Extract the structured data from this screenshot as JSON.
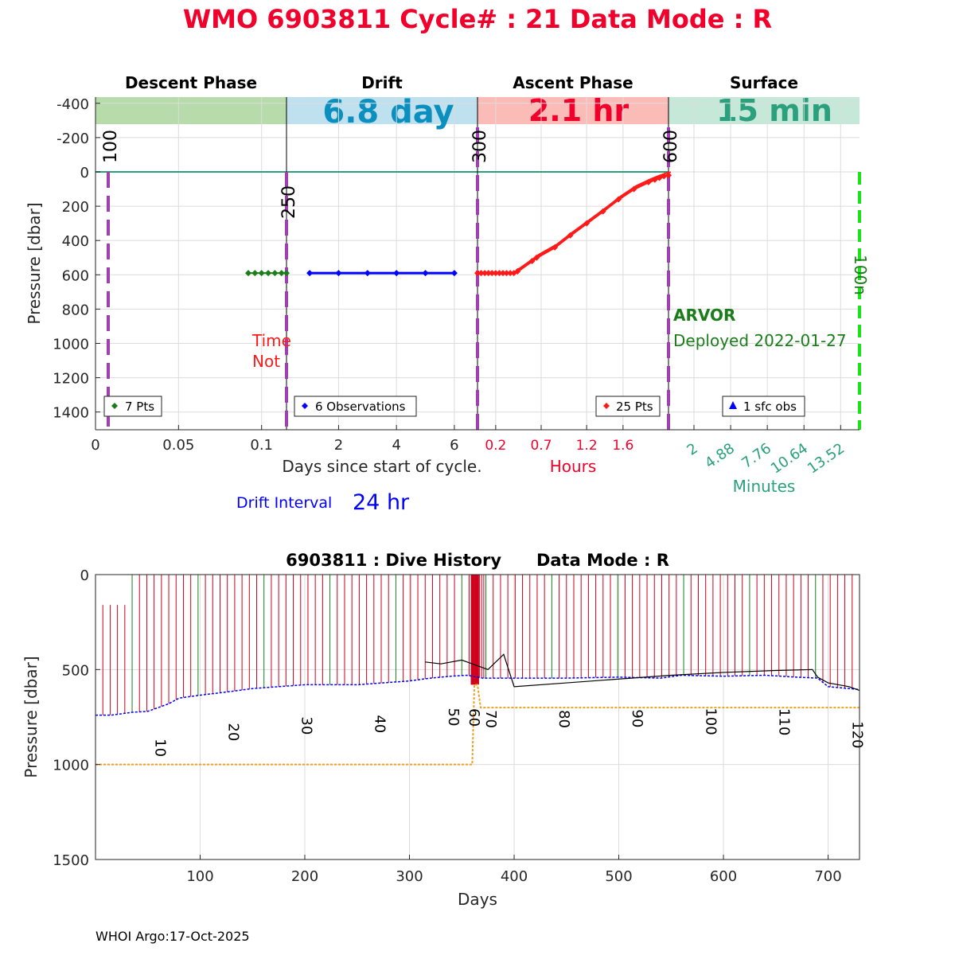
{
  "title": "WMO 6903811   Cycle# : 21   Data Mode : R",
  "colors": {
    "title": "#f0002a",
    "descent_band": "#b8dbab",
    "drift_band": "#bfe0ee",
    "ascent_band": "#fbbcb8",
    "surface_band": "#c6e8d8",
    "drift_text": "#0b8fbf",
    "ascent_text": "#f0002a",
    "surface_text": "#2aa07c",
    "purple": "#a040b0",
    "green_marker": "#1a7d1a",
    "blue_marker": "#0000ff",
    "red_marker": "#ff1a1a",
    "teal": "#2aa07c",
    "orange": "#f0a020",
    "lime": "#19e619"
  },
  "top_panel": {
    "phases": [
      "Descent Phase",
      "Drift",
      "Ascent Phase",
      "Surface"
    ],
    "band_values": [
      "",
      "6.8 day",
      "2.1 hr",
      "15 min"
    ],
    "ylabel": "Pressure [dbar]",
    "y_ticks": [
      "-400",
      "-200",
      "0",
      "200",
      "400",
      "600",
      "800",
      "1000",
      "1200",
      "1400"
    ],
    "descent_x_ticks": [
      "0",
      "0.05",
      "0.1"
    ],
    "drift_x_ticks": [
      "2",
      "4",
      "6"
    ],
    "ascent_x_ticks": [
      "0.2",
      "0.7",
      "1.2",
      "1.6"
    ],
    "surface_x_ticks": [
      "2",
      "4.88",
      "7.76",
      "10.64",
      "13.52"
    ],
    "xlabel_days": "Days since start of cycle.",
    "xlabel_hours": "Hours",
    "xlabel_minutes": "Minutes",
    "drift_interval_label": "Drift Interval",
    "drift_interval_value": "24 hr",
    "vertical_labels": [
      "100",
      "250",
      "300",
      "600",
      "100n"
    ],
    "time_note_line1": "Time",
    "time_note_line2": "Not",
    "float_type": "ARVOR",
    "deployed": "Deployed 2022-01-27",
    "legends": [
      "7 Pts",
      "6 Observations",
      "25 Pts",
      "1 sfc obs"
    ]
  },
  "bottom_panel": {
    "title": "6903811 : Dive History      Data Mode : R",
    "ylabel": "Pressure [dbar]",
    "xlabel": "Days",
    "y_ticks": [
      "0",
      "500",
      "1000",
      "1500"
    ],
    "x_ticks": [
      "100",
      "200",
      "300",
      "400",
      "500",
      "600",
      "700"
    ],
    "cycle_labels": [
      "10",
      "20",
      "30",
      "40",
      "50",
      "60",
      "70",
      "80",
      "90",
      "100",
      "110",
      "120"
    ]
  },
  "footer": "WHOI Argo:17-Oct-2025",
  "chart_data": [
    {
      "type": "scatter",
      "panel": "Cycle 21 profile",
      "y_axis": "Pressure [dbar]",
      "ylim": [
        1500,
        -450
      ],
      "grid": true,
      "segments": [
        {
          "phase": "Descent Phase",
          "x_unit": "days",
          "xlim": [
            0,
            0.115
          ],
          "x_ticks": [
            0,
            0.05,
            0.1
          ],
          "points_x": [
            0.092,
            0.096,
            0.1,
            0.104,
            0.108,
            0.112,
            0.115
          ],
          "points_y": [
            590,
            590,
            590,
            590,
            590,
            590,
            590
          ],
          "legend": "7 Pts"
        },
        {
          "phase": "Drift",
          "x_unit": "days",
          "xlim": [
            0.2,
            6.8
          ],
          "x_ticks": [
            2,
            4,
            6
          ],
          "points_x": [
            1,
            2,
            3,
            4,
            5,
            6
          ],
          "points_y": [
            590,
            590,
            590,
            590,
            590,
            590
          ],
          "legend": "6 Observations"
        },
        {
          "phase": "Ascent Phase",
          "x_unit": "hours",
          "xlim": [
            0,
            2.1
          ],
          "x_ticks": [
            0.2,
            0.7,
            1.2,
            1.6
          ],
          "points_x": [
            0.0,
            0.04,
            0.08,
            0.12,
            0.16,
            0.2,
            0.24,
            0.28,
            0.32,
            0.36,
            0.4,
            0.44,
            0.6,
            0.65,
            0.85,
            1.02,
            1.2,
            1.38,
            1.55,
            1.72,
            1.88,
            1.95,
            2.0,
            2.05,
            2.1
          ],
          "points_y": [
            590,
            590,
            590,
            590,
            590,
            590,
            590,
            590,
            590,
            590,
            590,
            580,
            520,
            500,
            440,
            370,
            300,
            230,
            160,
            100,
            60,
            45,
            35,
            25,
            20
          ],
          "legend": "25 Pts"
        },
        {
          "phase": "Surface",
          "x_unit": "minutes",
          "xlim": [
            0,
            15
          ],
          "x_ticks": [
            2,
            4.88,
            7.76,
            10.64,
            13.52
          ],
          "points_x": [],
          "points_y": [],
          "legend": "1 sfc obs"
        }
      ]
    },
    {
      "type": "line",
      "panel": "Dive History",
      "xlabel": "Days",
      "ylabel": "Pressure [dbar]",
      "xlim": [
        0,
        730
      ],
      "ylim": [
        1500,
        0
      ],
      "grid": true,
      "series": [
        {
          "name": "",
          "kind": "park pressure (blue)",
          "x": [
            0,
            15,
            35,
            50,
            60,
            70,
            80,
            100,
            130,
            150,
            200,
            250,
            300,
            320,
            340,
            355,
            370,
            400,
            450,
            500,
            540,
            560,
            600,
            640,
            670,
            690,
            700,
            720,
            730
          ],
          "y": [
            740,
            740,
            725,
            720,
            700,
            680,
            650,
            635,
            615,
            600,
            580,
            580,
            560,
            545,
            535,
            530,
            545,
            545,
            545,
            540,
            545,
            530,
            535,
            530,
            540,
            545,
            590,
            600,
            605
          ]
        },
        {
          "name": "",
          "kind": "target depth (orange)",
          "x": [
            0,
            360,
            362,
            365,
            368,
            730
          ],
          "y": [
            1000,
            1000,
            580,
            580,
            700,
            700
          ]
        },
        {
          "name": "",
          "kind": "drift track (black)",
          "x": [
            315,
            330,
            350,
            360,
            375,
            390,
            400,
            450,
            500,
            550,
            600,
            650,
            685,
            690,
            700,
            720,
            730
          ],
          "y": [
            460,
            470,
            450,
            470,
            500,
            420,
            590,
            570,
            550,
            530,
            515,
            505,
            500,
            540,
            570,
            590,
            610
          ]
        }
      ],
      "cycle_markers": [
        {
          "cycle": 10,
          "day": 62
        },
        {
          "cycle": 20,
          "day": 132
        },
        {
          "cycle": 30,
          "day": 202
        },
        {
          "cycle": 40,
          "day": 272
        },
        {
          "cycle": 50,
          "day": 342
        },
        {
          "cycle": 60,
          "day": 362
        },
        {
          "cycle": 70,
          "day": 378
        },
        {
          "cycle": 80,
          "day": 448
        },
        {
          "cycle": 90,
          "day": 518
        },
        {
          "cycle": 100,
          "day": 588
        },
        {
          "cycle": 110,
          "day": 658
        },
        {
          "cycle": 120,
          "day": 728
        }
      ]
    }
  ]
}
